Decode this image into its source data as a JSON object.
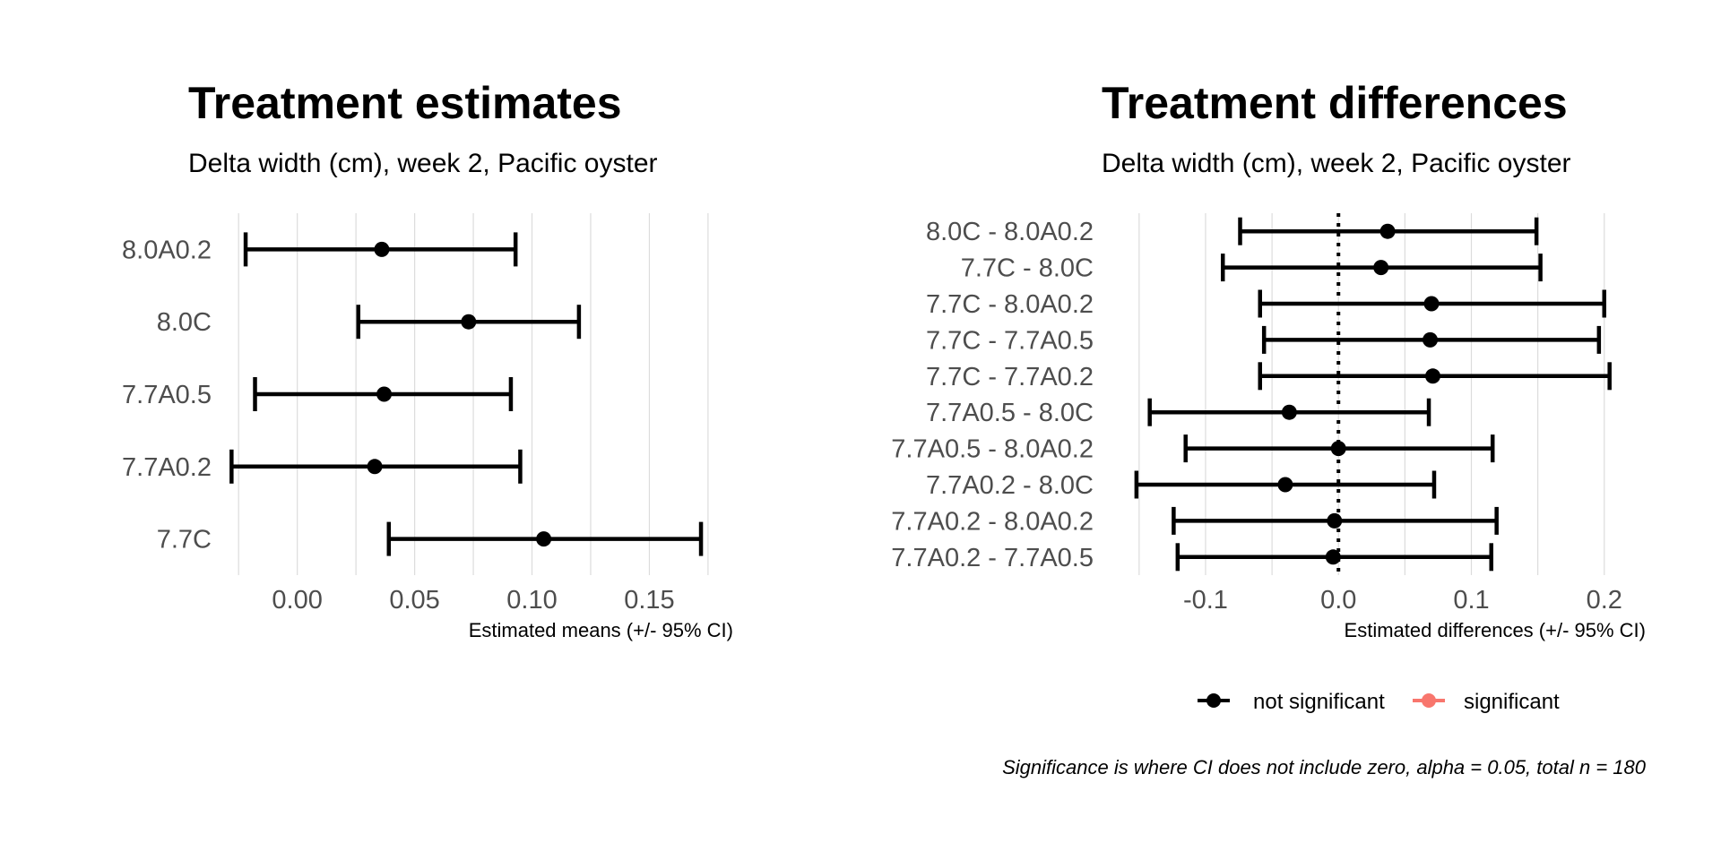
{
  "chart_data": [
    {
      "type": "errorbar",
      "title": "Treatment estimates",
      "subtitle": "Delta width (cm), week 2, Pacific oyster",
      "xlabel": "Estimated means (+/- 95% CI)",
      "xlim": [
        -0.035,
        0.18
      ],
      "xticks": [
        0.0,
        0.05,
        0.1,
        0.15
      ],
      "xtick_labels": [
        "0.00",
        "0.05",
        "0.10",
        "0.15"
      ],
      "grid": true,
      "categories": [
        "8.0A0.2",
        "8.0C",
        "7.7A0.5",
        "7.7A0.2",
        "7.7C"
      ],
      "estimates": [
        0.036,
        0.073,
        0.037,
        0.033,
        0.105
      ],
      "lower": [
        -0.022,
        0.026,
        -0.018,
        -0.028,
        0.039
      ],
      "upper": [
        0.093,
        0.12,
        0.091,
        0.095,
        0.172
      ],
      "color": "#000000"
    },
    {
      "type": "errorbar",
      "title": "Treatment differences",
      "subtitle": "Delta width (cm), week 2, Pacific oyster",
      "xlabel": "Estimated differences (+/- 95% CI)",
      "xlim": [
        -0.16,
        0.215
      ],
      "xticks": [
        -0.1,
        0.0,
        0.1,
        0.2
      ],
      "xtick_labels": [
        "-0.1",
        "0.0",
        "0.1",
        "0.2"
      ],
      "grid": true,
      "reference_line": 0,
      "categories": [
        "8.0C - 8.0A0.2",
        "7.7C - 8.0C",
        "7.7C - 8.0A0.2",
        "7.7C - 7.7A0.5",
        "7.7C - 7.7A0.2",
        "7.7A0.5 - 8.0C",
        "7.7A0.5 - 8.0A0.2",
        "7.7A0.2 - 8.0C",
        "7.7A0.2 - 8.0A0.2",
        "7.7A0.2 - 7.7A0.5"
      ],
      "estimates": [
        0.037,
        0.032,
        0.07,
        0.069,
        0.071,
        -0.037,
        0.0,
        -0.04,
        -0.003,
        -0.004
      ],
      "lower": [
        -0.074,
        -0.087,
        -0.059,
        -0.056,
        -0.059,
        -0.142,
        -0.115,
        -0.152,
        -0.124,
        -0.121
      ],
      "upper": [
        0.149,
        0.152,
        0.2,
        0.196,
        0.204,
        0.068,
        0.116,
        0.072,
        0.119,
        0.115
      ],
      "significant": [
        false,
        false,
        false,
        false,
        false,
        false,
        false,
        false,
        false,
        false
      ],
      "legend": {
        "position": "bottom",
        "items": [
          {
            "label": "not significant",
            "color": "#000000"
          },
          {
            "label": "significant",
            "color": "#f8766d"
          }
        ]
      },
      "caption": "Significance is where CI does not include zero, alpha = 0.05, total n = 180"
    }
  ]
}
